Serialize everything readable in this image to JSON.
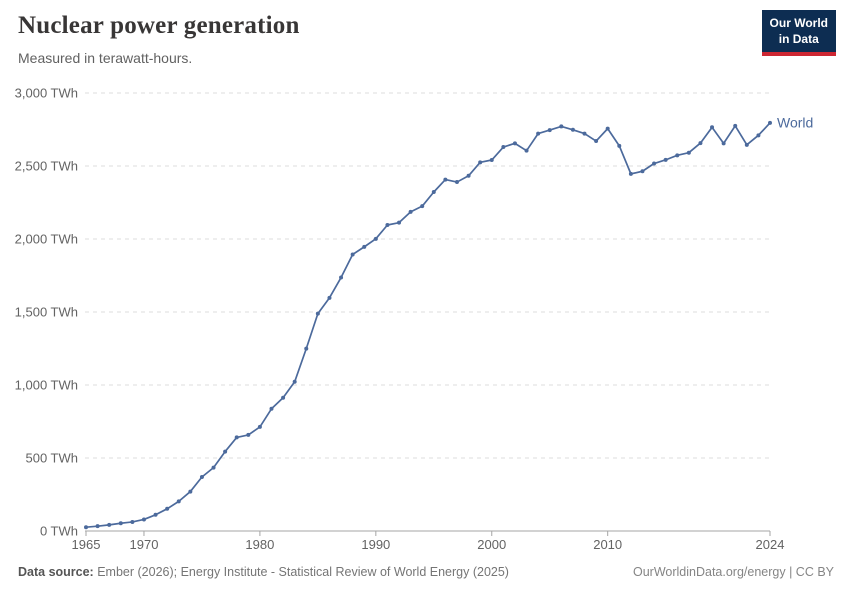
{
  "header": {
    "title": "Nuclear power generation",
    "subtitle": "Measured in terawatt-hours."
  },
  "logo": {
    "line1": "Our World",
    "line2": "in Data",
    "bg_color": "#0d2d52",
    "accent_color": "#cd2632"
  },
  "footer": {
    "source_label": "Data source:",
    "source_text": "Ember (2026); Energy Institute - Statistical Review of World Energy (2025)",
    "credit": "OurWorldinData.org/energy | CC BY"
  },
  "chart_data": {
    "type": "line",
    "title": "Nuclear power generation",
    "subtitle": "Measured in terawatt-hours.",
    "xlabel": "",
    "ylabel": "TWh",
    "xlim": [
      1965,
      2024
    ],
    "ylim": [
      0,
      3000
    ],
    "grid": "horizontal-dashed",
    "legend": "end-of-line-label",
    "x_ticks": [
      1965,
      1970,
      1980,
      1990,
      2000,
      2010,
      2024
    ],
    "x_tick_labels": [
      "1965",
      "1970",
      "1980",
      "1990",
      "2000",
      "2010",
      "2024"
    ],
    "y_ticks": [
      0,
      500,
      1000,
      1500,
      2000,
      2500,
      3000
    ],
    "y_tick_labels": [
      "0 TWh",
      "500 TWh",
      "1,000 TWh",
      "1,500 TWh",
      "2,000 TWh",
      "2,500 TWh",
      "3,000 TWh"
    ],
    "series": [
      {
        "name": "World",
        "color": "#4c6a9c",
        "x": [
          1965,
          1966,
          1967,
          1968,
          1969,
          1970,
          1971,
          1972,
          1973,
          1974,
          1975,
          1976,
          1977,
          1978,
          1979,
          1980,
          1981,
          1982,
          1983,
          1984,
          1985,
          1986,
          1987,
          1988,
          1989,
          1990,
          1991,
          1992,
          1993,
          1994,
          1995,
          1996,
          1997,
          1998,
          1999,
          2000,
          2001,
          2002,
          2003,
          2004,
          2005,
          2006,
          2007,
          2008,
          2009,
          2010,
          2011,
          2012,
          2013,
          2014,
          2015,
          2016,
          2017,
          2018,
          2019,
          2020,
          2021,
          2022,
          2023,
          2024
        ],
        "values": [
          26,
          33,
          42,
          53,
          62,
          79,
          111,
          152,
          203,
          270,
          370,
          434,
          544,
          641,
          658,
          713,
          837,
          913,
          1022,
          1249,
          1489,
          1597,
          1736,
          1894,
          1946,
          2001,
          2096,
          2112,
          2186,
          2225,
          2322,
          2407,
          2390,
          2433,
          2525,
          2541,
          2630,
          2655,
          2605,
          2722,
          2746,
          2771,
          2748,
          2722,
          2671,
          2756,
          2638,
          2446,
          2464,
          2517,
          2542,
          2573,
          2591,
          2657,
          2765,
          2655,
          2775,
          2645,
          2710,
          2795
        ]
      }
    ]
  }
}
